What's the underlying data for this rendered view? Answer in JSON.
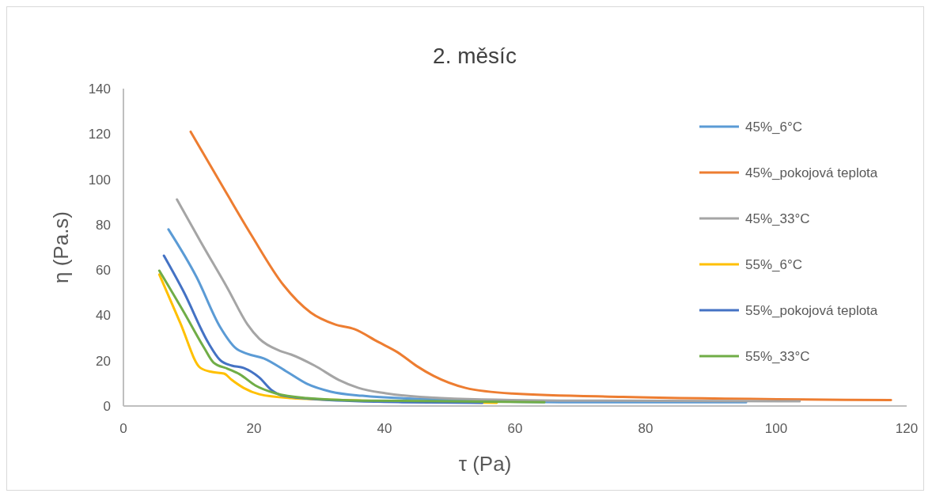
{
  "chart_data": {
    "type": "line",
    "title": "2. měsíc",
    "xlabel": "τ (Pa)",
    "ylabel": "η  (Pa.s)",
    "xlim": [
      0,
      120
    ],
    "xticks": [
      0,
      20,
      40,
      60,
      80,
      100,
      120
    ],
    "ylim": [
      0,
      140
    ],
    "yticks": [
      0,
      20,
      40,
      60,
      80,
      100,
      120,
      140
    ],
    "grid": false,
    "legend": "right",
    "marker": "none",
    "line_style": "solid",
    "series": [
      {
        "name": "45%_6°C",
        "color": "#5b9bd5",
        "x": [
          6.9,
          11.2,
          14.8,
          17.2,
          19,
          21.5,
          25.1,
          28.1,
          31.8,
          36.6,
          48.7,
          67,
          95.4
        ],
        "values": [
          77.9,
          56.9,
          34.9,
          25.5,
          23,
          21,
          15,
          9.8,
          6.3,
          4.5,
          2.8,
          1.7,
          1.7
        ]
      },
      {
        "name": "45%_pokojová teplota",
        "color": "#ed7d31",
        "x": [
          10.3,
          14.8,
          19.6,
          24.5,
          28.7,
          32.4,
          35.4,
          39,
          42,
          45,
          47.5,
          52.4,
          59.6,
          76.5,
          117.6
        ],
        "values": [
          121,
          98.8,
          75.4,
          53.4,
          41.2,
          36,
          33.9,
          28.3,
          23.7,
          17.5,
          13.3,
          8,
          5.5,
          4,
          2.6
        ]
      },
      {
        "name": "45%_33°C",
        "color": "#a5a5a5",
        "x": [
          8.2,
          11.8,
          16,
          19,
          20.8,
          23.9,
          25.7,
          29.3,
          33,
          36,
          40.2,
          48.7,
          67,
          103.6
        ],
        "values": [
          91.1,
          72.6,
          51.7,
          36,
          29.7,
          24.4,
          22.7,
          17.8,
          11.5,
          8,
          5.6,
          3.5,
          2.4,
          2.1
        ]
      },
      {
        "name": "55%_6°C",
        "color": "#ffc000",
        "x": [
          5.5,
          8.7,
          11.8,
          13.6,
          15.4,
          16.6,
          18.4,
          20.8,
          25.7,
          36.6,
          57.2
        ],
        "values": [
          58,
          36.7,
          16.8,
          15,
          14.3,
          11.5,
          8,
          5.2,
          3.5,
          2.4,
          1.4
        ]
      },
      {
        "name": "55%_pokojová teplota",
        "color": "#4472c4",
        "x": [
          6.2,
          9.3,
          13,
          14.8,
          16.6,
          18.4,
          20.8,
          22.7,
          24.5,
          30.5,
          42.7,
          55
        ],
        "values": [
          66.3,
          50,
          27.9,
          20.3,
          17.8,
          16.8,
          12.6,
          7,
          4.5,
          2.8,
          1.7,
          1.4
        ]
      },
      {
        "name": "55%_33°C",
        "color": "#70ad47",
        "x": [
          5.5,
          9.3,
          12.4,
          13.8,
          16,
          17.8,
          20.2,
          23.3,
          28.1,
          36.6,
          64.5
        ],
        "values": [
          59.7,
          41.2,
          25.5,
          19.2,
          16.4,
          14,
          9.1,
          5.6,
          3.5,
          2.4,
          1.7
        ]
      }
    ]
  }
}
